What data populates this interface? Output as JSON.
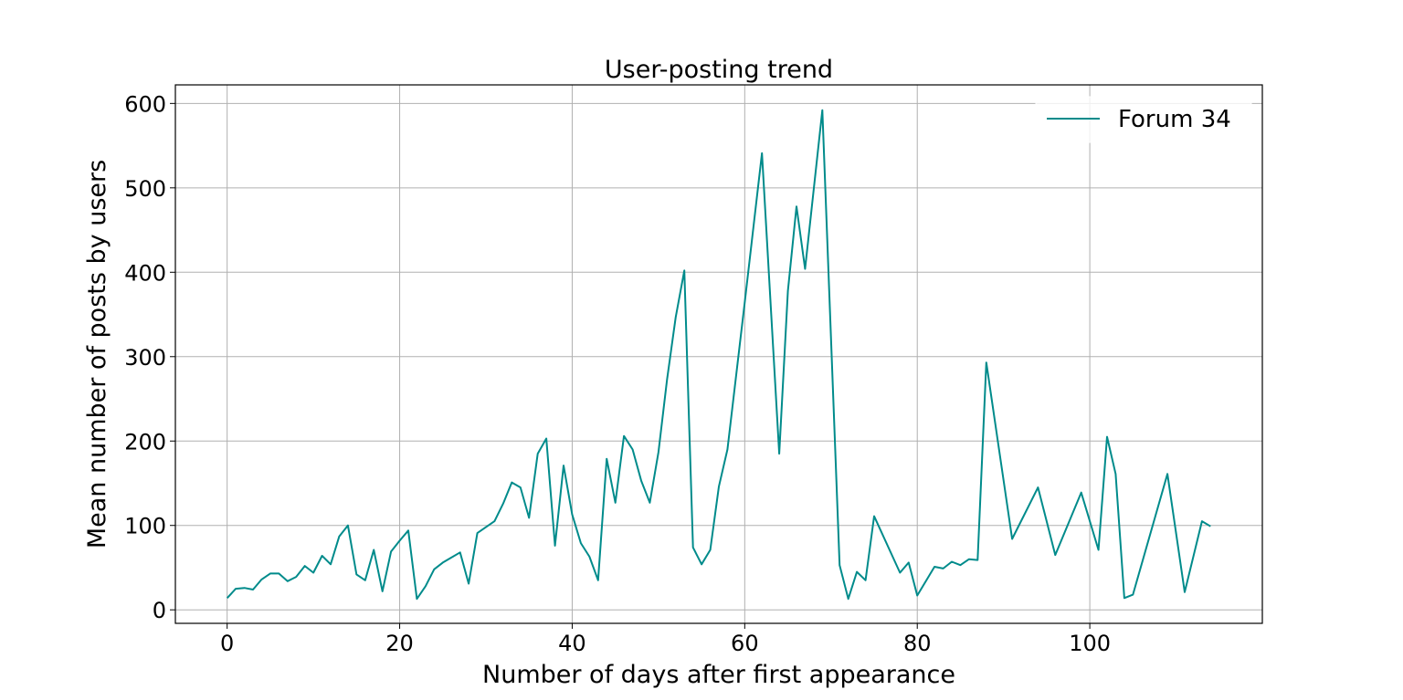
{
  "chart_data": {
    "type": "line",
    "title": "User-posting trend",
    "xlabel": "Number of days after first appearance",
    "ylabel": "Mean number of posts by users",
    "xlim": [
      -6,
      120
    ],
    "ylim": [
      -16,
      622
    ],
    "xticks": [
      0,
      20,
      40,
      60,
      80,
      100
    ],
    "yticks": [
      0,
      100,
      200,
      300,
      400,
      500,
      600
    ],
    "grid": true,
    "legend_position": "top-right",
    "series": [
      {
        "name": "Forum 34",
        "color": "#008b8b",
        "x": [
          0,
          1,
          2,
          3,
          4,
          5,
          6,
          7,
          8,
          9,
          10,
          11,
          12,
          13,
          14,
          15,
          16,
          17,
          18,
          19,
          20,
          21,
          22,
          23,
          24,
          25,
          26,
          27,
          28,
          29,
          30,
          31,
          32,
          33,
          34,
          35,
          36,
          37,
          38,
          39,
          40,
          41,
          42,
          43,
          44,
          45,
          46,
          47,
          48,
          49,
          50,
          51,
          52,
          53,
          54,
          55,
          56,
          57,
          58,
          60,
          62,
          64,
          65,
          66,
          67,
          69,
          71,
          72,
          73,
          74,
          75,
          78,
          79,
          80,
          82,
          83,
          84,
          85,
          86,
          87,
          88,
          91,
          94,
          96,
          99,
          101,
          102,
          103,
          104,
          105,
          109,
          111,
          113,
          114
        ],
        "y": [
          14,
          25,
          26,
          24,
          36,
          43,
          43,
          34,
          39,
          52,
          44,
          64,
          54,
          87,
          100,
          42,
          35,
          71,
          22,
          69,
          82,
          94,
          13,
          28,
          48,
          56,
          62,
          68,
          31,
          91,
          98,
          105,
          126,
          151,
          145,
          109,
          185,
          203,
          76,
          171,
          113,
          79,
          63,
          35,
          179,
          127,
          206,
          190,
          153,
          127,
          187,
          273,
          347,
          402,
          74,
          54,
          71,
          146,
          190,
          364,
          541,
          185,
          378,
          478,
          404,
          592,
          53,
          13,
          45,
          35,
          111,
          44,
          56,
          17,
          51,
          49,
          57,
          53,
          60,
          59,
          293,
          84,
          145,
          65,
          139,
          71,
          205,
          161,
          14,
          18,
          161,
          21,
          105,
          99
        ]
      }
    ]
  }
}
